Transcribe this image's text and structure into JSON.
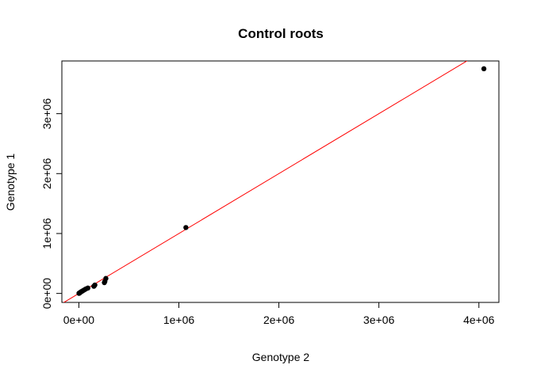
{
  "chart_data": {
    "type": "scatter",
    "title": "Control roots",
    "xlabel": "Genotype 2",
    "ylabel": "Genotype 1",
    "xlim": [
      -170000,
      4200000
    ],
    "ylim": [
      -150000,
      3880000
    ],
    "x_ticks": [
      {
        "value": 0,
        "label": "0e+00"
      },
      {
        "value": 1000000,
        "label": "1e+06"
      },
      {
        "value": 2000000,
        "label": "2e+06"
      },
      {
        "value": 3000000,
        "label": "3e+06"
      },
      {
        "value": 4000000,
        "label": "4e+06"
      }
    ],
    "y_ticks": [
      {
        "value": 0,
        "label": "0e+00"
      },
      {
        "value": 1000000,
        "label": "1e+06"
      },
      {
        "value": 2000000,
        "label": "2e+06"
      },
      {
        "value": 3000000,
        "label": "3e+06"
      }
    ],
    "points": [
      {
        "x": 4050000,
        "y": 3750000
      },
      {
        "x": 1070000,
        "y": 1100000
      },
      {
        "x": 270000,
        "y": 250000
      },
      {
        "x": 260000,
        "y": 200000
      },
      {
        "x": 255000,
        "y": 180000
      },
      {
        "x": 160000,
        "y": 140000
      },
      {
        "x": 150000,
        "y": 120000
      },
      {
        "x": 90000,
        "y": 90000
      },
      {
        "x": 70000,
        "y": 75000
      },
      {
        "x": 55000,
        "y": 60000
      },
      {
        "x": 40000,
        "y": 45000
      },
      {
        "x": 30000,
        "y": 35000
      },
      {
        "x": 20000,
        "y": 25000
      },
      {
        "x": 12000,
        "y": 15000
      },
      {
        "x": 8000,
        "y": 8000
      },
      {
        "x": 5000,
        "y": 5000
      },
      {
        "x": 3000,
        "y": 3000
      },
      {
        "x": 1000,
        "y": 1500
      }
    ],
    "point_color": "#000000",
    "reference_line": {
      "intercept": 0,
      "slope": 1,
      "color": "#ff0000"
    },
    "grid": false,
    "legend": "none"
  }
}
